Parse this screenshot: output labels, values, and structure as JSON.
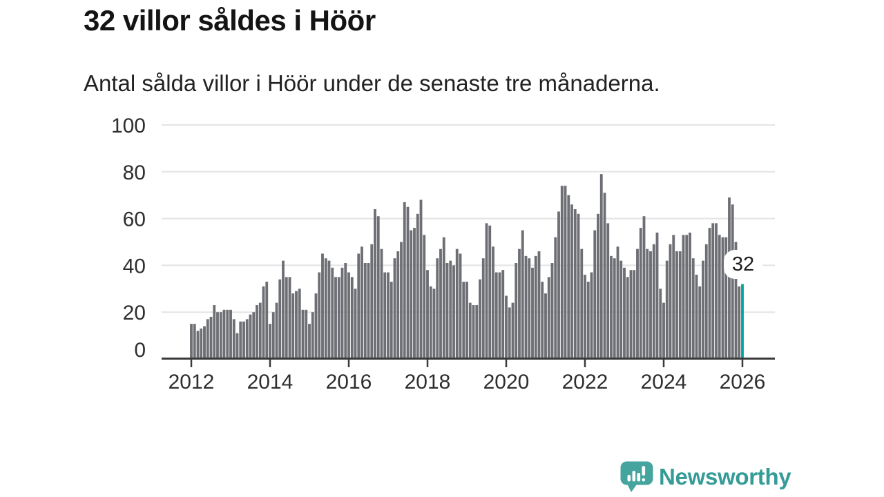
{
  "header": {
    "title": "32 villor såldes i Höör",
    "subtitle": "Antal sålda villor i Höör under de senaste tre månaderna."
  },
  "chart_data": {
    "type": "bar",
    "title": "32 villor såldes i Höör",
    "subtitle": "Antal sålda villor i Höör under de senaste tre månaderna.",
    "unit": "sålda villor (rullande tre månader)",
    "frequency": "monthly",
    "x_start": "2012-01",
    "x_end": "2026-01",
    "ylim": [
      0,
      100
    ],
    "y_ticks": [
      0,
      20,
      40,
      60,
      80,
      100
    ],
    "x_tick_years": [
      "2012",
      "2014",
      "2016",
      "2018",
      "2020",
      "2022",
      "2024",
      "2026"
    ],
    "grid": "horizontal",
    "legend": "none",
    "bar_color": "#6d6f74",
    "highlight_color": "#00a69c",
    "values": [
      15,
      15,
      12,
      13,
      14,
      17,
      18,
      23,
      20,
      20,
      21,
      21,
      21,
      17,
      11,
      16,
      16,
      17,
      19,
      20,
      23,
      24,
      31,
      33,
      15,
      20,
      24,
      34,
      42,
      35,
      35,
      28,
      29,
      30,
      21,
      21,
      15,
      20,
      28,
      37,
      45,
      43,
      42,
      39,
      35,
      35,
      39,
      41,
      37,
      35,
      30,
      45,
      48,
      41,
      41,
      49,
      64,
      61,
      47,
      37,
      37,
      33,
      43,
      46,
      50,
      67,
      65,
      55,
      56,
      62,
      68,
      53,
      38,
      31,
      30,
      43,
      47,
      52,
      41,
      42,
      40,
      47,
      45,
      33,
      33,
      24,
      23,
      23,
      34,
      43,
      58,
      57,
      48,
      37,
      37,
      38,
      27,
      22,
      24,
      41,
      47,
      55,
      44,
      43,
      39,
      44,
      46,
      33,
      28,
      35,
      41,
      52,
      63,
      74,
      74,
      70,
      66,
      64,
      62,
      47,
      36,
      33,
      37,
      55,
      62,
      79,
      71,
      58,
      44,
      43,
      48,
      42,
      39,
      35,
      38,
      38,
      47,
      56,
      61,
      47,
      46,
      49,
      54,
      30,
      24,
      42,
      49,
      53,
      46,
      46,
      53,
      53,
      54,
      43,
      36,
      31,
      42,
      49,
      56,
      58,
      58,
      53,
      52,
      52,
      69,
      66,
      50,
      31
    ],
    "highlight": {
      "x": "2026-01",
      "value": 32,
      "label": "32"
    }
  },
  "colors": {
    "grid": "#e4e4e4",
    "axis": "#3a3a3a",
    "tick_label": "#2e2e2e",
    "annotation_text": "#1d1d1d",
    "logo_icon": "#45a59e",
    "logo_text": "#349b96"
  },
  "footer": {
    "brand": "Newsworthy",
    "logo_icon": "bar-chart-speech-bubble-icon"
  }
}
